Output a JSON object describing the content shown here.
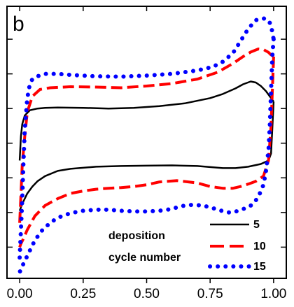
{
  "panel_label": "b",
  "legend": {
    "title_line1": "deposition",
    "title_line2": "cycle number",
    "entries": [
      {
        "label": "5",
        "color": "#000000",
        "style": "solid"
      },
      {
        "label": "10",
        "color": "#ff0000",
        "style": "dashed"
      },
      {
        "label": "15",
        "color": "#0000ff",
        "style": "dotted"
      }
    ]
  },
  "chart_data": {
    "type": "line",
    "title": "",
    "xlabel": "",
    "ylabel": "",
    "xlim": [
      -0.05,
      1.05
    ],
    "ylim": [
      -3.9,
      3.95
    ],
    "x_ticks": [
      0.0,
      0.25,
      0.5,
      0.75,
      1.0
    ],
    "x_tick_labels": [
      "0.00",
      "0.25",
      "0.50",
      "0.75",
      "1.00"
    ],
    "y_ticks": [
      -3,
      -2,
      -1,
      0,
      1,
      2,
      3
    ],
    "y_tick_labels": [],
    "grid": false,
    "legend_position": "bottom-right",
    "series": [
      {
        "name": "5",
        "color": "#000000",
        "style": "solid",
        "upper": {
          "x": [
            0.0,
            0.005,
            0.01,
            0.02,
            0.04,
            0.07,
            0.1,
            0.15,
            0.25,
            0.35,
            0.45,
            0.55,
            0.65,
            0.75,
            0.8,
            0.85,
            0.88,
            0.91,
            0.93,
            0.95,
            0.97,
            0.99,
            1.0
          ],
          "y": [
            -0.5,
            0.2,
            0.55,
            0.8,
            0.95,
            1.0,
            1.02,
            1.03,
            1.02,
            1.0,
            1.02,
            1.07,
            1.15,
            1.3,
            1.42,
            1.58,
            1.7,
            1.78,
            1.75,
            1.65,
            1.5,
            1.3,
            1.2
          ]
        },
        "lower": {
          "x": [
            1.0,
            0.995,
            0.99,
            0.98,
            0.95,
            0.9,
            0.85,
            0.8,
            0.7,
            0.6,
            0.5,
            0.4,
            0.3,
            0.2,
            0.15,
            0.1,
            0.07,
            0.05,
            0.03,
            0.02,
            0.01,
            0.005,
            0.0
          ],
          "y": [
            1.2,
            0.4,
            -0.3,
            -0.5,
            -0.6,
            -0.68,
            -0.72,
            -0.72,
            -0.66,
            -0.64,
            -0.65,
            -0.66,
            -0.68,
            -0.74,
            -0.8,
            -0.95,
            -1.1,
            -1.25,
            -1.45,
            -1.6,
            -1.75,
            -1.85,
            -1.95
          ]
        }
      },
      {
        "name": "10",
        "color": "#ff0000",
        "style": "dashed",
        "upper": {
          "x": [
            0.0,
            0.005,
            0.01,
            0.02,
            0.03,
            0.05,
            0.08,
            0.12,
            0.2,
            0.3,
            0.4,
            0.5,
            0.6,
            0.7,
            0.78,
            0.84,
            0.88,
            0.91,
            0.94,
            0.96,
            0.98,
            0.99,
            1.0
          ],
          "y": [
            -2.3,
            -1.5,
            -0.6,
            0.2,
            0.9,
            1.35,
            1.55,
            1.6,
            1.63,
            1.62,
            1.6,
            1.65,
            1.72,
            1.85,
            2.05,
            2.3,
            2.5,
            2.63,
            2.72,
            2.7,
            2.62,
            2.55,
            2.5
          ]
        },
        "lower": {
          "x": [
            1.0,
            0.99,
            0.98,
            0.96,
            0.93,
            0.9,
            0.87,
            0.84,
            0.8,
            0.75,
            0.7,
            0.62,
            0.55,
            0.5,
            0.45,
            0.4,
            0.35,
            0.3,
            0.25,
            0.2,
            0.15,
            0.1,
            0.06,
            0.03,
            0.015,
            0.005,
            0.0
          ],
          "y": [
            2.5,
            0.5,
            -0.5,
            -0.95,
            -1.1,
            -1.18,
            -1.25,
            -1.3,
            -1.3,
            -1.25,
            -1.15,
            -1.08,
            -1.12,
            -1.2,
            -1.25,
            -1.28,
            -1.3,
            -1.33,
            -1.38,
            -1.45,
            -1.6,
            -1.8,
            -2.1,
            -2.5,
            -2.75,
            -2.9,
            -3.0
          ]
        }
      },
      {
        "name": "15",
        "color": "#0000ff",
        "style": "dotted",
        "upper": {
          "x": [
            0.0,
            0.005,
            0.01,
            0.015,
            0.02,
            0.03,
            0.04,
            0.05,
            0.07,
            0.1,
            0.15,
            0.2,
            0.3,
            0.4,
            0.5,
            0.6,
            0.7,
            0.76,
            0.8,
            0.84,
            0.87,
            0.9,
            0.93,
            0.96,
            0.98,
            0.99,
            1.0
          ],
          "y": [
            -3.3,
            -2.5,
            -1.6,
            -0.5,
            0.4,
            1.3,
            1.7,
            1.85,
            1.93,
            2.0,
            2.0,
            1.97,
            1.93,
            1.92,
            1.95,
            2.0,
            2.1,
            2.2,
            2.35,
            2.6,
            2.95,
            3.3,
            3.55,
            3.6,
            3.55,
            3.4,
            3.0
          ]
        },
        "lower": {
          "x": [
            1.0,
            0.995,
            0.99,
            0.985,
            0.98,
            0.97,
            0.96,
            0.94,
            0.92,
            0.9,
            0.88,
            0.86,
            0.84,
            0.82,
            0.8,
            0.78,
            0.75,
            0.72,
            0.68,
            0.65,
            0.62,
            0.6,
            0.55,
            0.5,
            0.45,
            0.4,
            0.35,
            0.3,
            0.25,
            0.2,
            0.15,
            0.12,
            0.09,
            0.06,
            0.04,
            0.02,
            0.01,
            0.005,
            0.0
          ],
          "y": [
            3.0,
            2.5,
            1.5,
            0.5,
            -0.2,
            -0.8,
            -1.2,
            -1.55,
            -1.75,
            -1.85,
            -1.9,
            -1.95,
            -2.0,
            -2.0,
            -1.96,
            -1.92,
            -1.85,
            -1.8,
            -1.78,
            -1.8,
            -1.85,
            -1.9,
            -1.95,
            -1.97,
            -1.97,
            -1.95,
            -1.92,
            -1.92,
            -1.95,
            -2.02,
            -2.15,
            -2.3,
            -2.5,
            -2.8,
            -3.1,
            -3.4,
            -3.55,
            -3.65,
            -3.72
          ]
        }
      }
    ]
  }
}
